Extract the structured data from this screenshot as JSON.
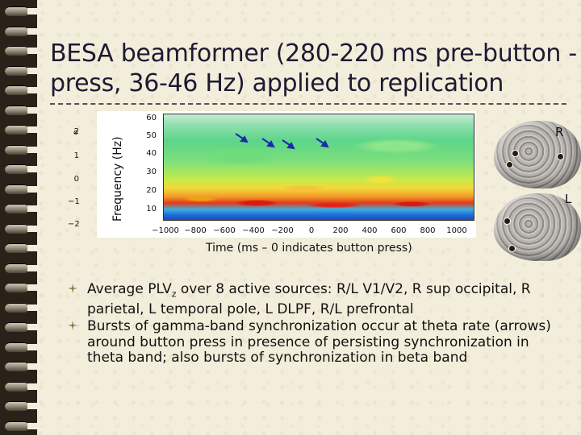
{
  "slide": {
    "title": "BESA beamformer (280-220 ms pre-button -press, 36-46 Hz) applied to replication"
  },
  "figure": {
    "ylabel": "Frequency (Hz)",
    "xlabel": "Time (ms – 0 indicates button press)",
    "y_ticks": [
      "50",
      "40",
      "30",
      "20",
      "10"
    ],
    "x_ticks": [
      "−1000",
      "−800",
      "−600",
      "−400",
      "−200",
      "0",
      "200",
      "400",
      "600",
      "800",
      "1000"
    ],
    "colorbar_ticks": [
      "2",
      "1",
      "0",
      "−1",
      "−2"
    ],
    "colorbar_symbol": "σ",
    "top_tick": "60",
    "colors": {
      "high": "#d81a10",
      "mid": "#f3d83a",
      "low": "#5cd58a",
      "base": "#1d48c0",
      "arrow": "#1c2aa8"
    }
  },
  "brains": {
    "right_label": "R",
    "left_label": "L"
  },
  "bullets": [
    "Average PLV z over 8 active sources: R/L V1/V2, R sup occipital, R parietal, L temporal pole, L DLPF, R/L prefrontal",
    "Bursts of gamma-band synchronization occur at theta rate (arrows) around button press in presence of persisting synchronization in theta band; also bursts of synchronization in beta band"
  ],
  "bullet1_parts": {
    "pre": "Average PLV",
    "sub": "z",
    "post": " over 8 active sources: R/L V1/V2, R sup occipital, R parietal, L temporal pole, L DLPF, R/L prefrontal"
  }
}
